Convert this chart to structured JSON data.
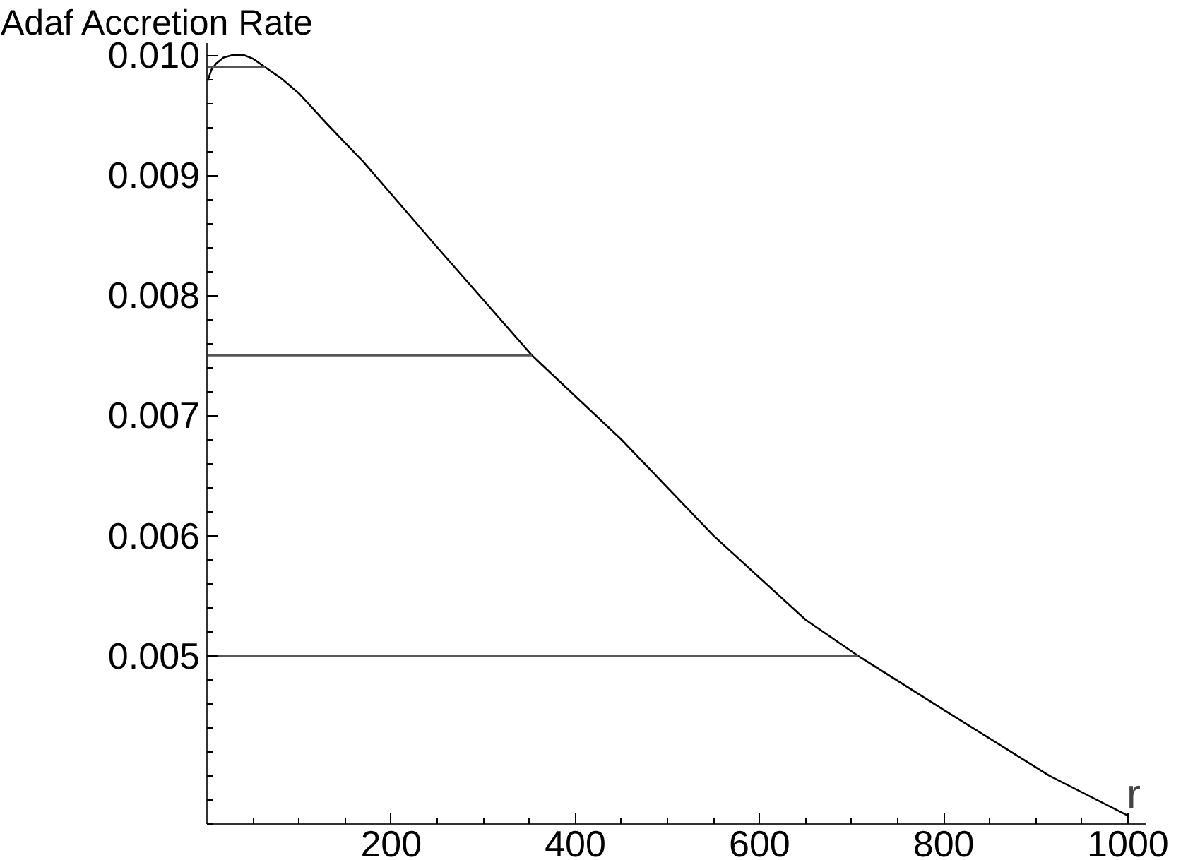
{
  "chart_data": {
    "type": "line",
    "ylabel": "Adaf Accretion Rate",
    "xlabel": "r",
    "series": [
      {
        "color": "#000000",
        "x": [
          0,
          5,
          10,
          18,
          28,
          40,
          50,
          63,
          80,
          100,
          130,
          170,
          250,
          353,
          450,
          550,
          650,
          707,
          800,
          915,
          1000
        ],
        "values": [
          0.00977,
          0.00988,
          0.00993,
          0.00998,
          0.01,
          0.01,
          0.00997,
          0.0099,
          0.00981,
          0.00968,
          0.00943,
          0.00911,
          0.0084,
          0.0075,
          0.0068,
          0.006,
          0.0053,
          0.005,
          0.00455,
          0.004,
          0.00367
        ]
      },
      {
        "color": "#555555",
        "x": [
          0,
          63
        ],
        "values": [
          0.0099,
          0.0099
        ]
      },
      {
        "color": "#555555",
        "x": [
          0,
          353
        ],
        "values": [
          0.0075,
          0.0075
        ]
      },
      {
        "color": "#555555",
        "x": [
          0,
          707
        ],
        "values": [
          0.005,
          0.005
        ]
      }
    ],
    "xlim": [
      0,
      1020
    ],
    "ylim": [
      0.0036,
      0.0101
    ],
    "xticks": [
      200,
      400,
      600,
      800,
      1000
    ],
    "yticks": [
      0.005,
      0.006,
      0.007,
      0.008,
      0.009,
      {
        "value": 0.01,
        "label": "0.010"
      }
    ],
    "grid": false,
    "marker": "none",
    "line_style": "solid"
  }
}
